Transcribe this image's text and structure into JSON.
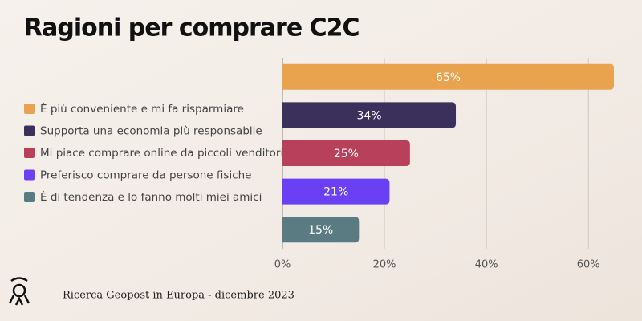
{
  "chart_data": {
    "type": "bar",
    "orientation": "horizontal",
    "title": "Ragioni per comprare C2C",
    "source": "Ricerca Geopost in Europa - dicembre 2023",
    "categories": [
      "È più conveniente e mi fa risparmiare",
      "Supporta una economia più responsabile",
      "Mi piace comprare online da piccoli venditori",
      "Preferisco comprare da persone fisiche",
      "È di tendenza e lo fanno molti miei amici"
    ],
    "values": [
      65,
      34,
      25,
      21,
      15
    ],
    "value_labels": [
      "65%",
      "34%",
      "25%",
      "21%",
      "15%"
    ],
    "colors": [
      "#e9a24e",
      "#3b2f5c",
      "#b9405b",
      "#6b40f4",
      "#5b7b82"
    ],
    "xlim": [
      0,
      65
    ],
    "xticks": [
      {
        "value": 0,
        "label": "0%"
      },
      {
        "value": 20,
        "label": "20%"
      },
      {
        "value": 40,
        "label": "40%"
      },
      {
        "value": 60,
        "label": "60%"
      }
    ],
    "grid": true,
    "legend": "left"
  }
}
